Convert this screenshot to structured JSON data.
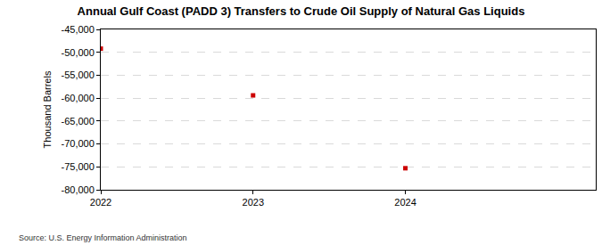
{
  "chart_data": {
    "type": "scatter",
    "title": "Annual Gulf Coast (PADD 3) Transfers to Crude Oil Supply of Natural Gas Liquids",
    "y_label": "Thousand Barrels",
    "source": "Source: U.S. Energy Information Administration",
    "x": [
      2022,
      2023,
      2024
    ],
    "values": [
      -49200,
      -59400,
      -75300
    ],
    "color": "#cc0000",
    "marker": "square",
    "xlim": [
      2022,
      2025.25
    ],
    "xticks": [
      2022,
      2023,
      2024
    ],
    "ylim": [
      -80000,
      -45000
    ],
    "yticks": [
      {
        "value": -80000,
        "label": "-80,000"
      },
      {
        "value": -75000,
        "label": "-75,000"
      },
      {
        "value": -70000,
        "label": "-70,000"
      },
      {
        "value": -65000,
        "label": "-65,000"
      },
      {
        "value": -60000,
        "label": "-60,000"
      },
      {
        "value": -55000,
        "label": "-55,000"
      },
      {
        "value": -50000,
        "label": "-50,000"
      },
      {
        "value": -45000,
        "label": "-45,000"
      }
    ],
    "grid": true
  }
}
